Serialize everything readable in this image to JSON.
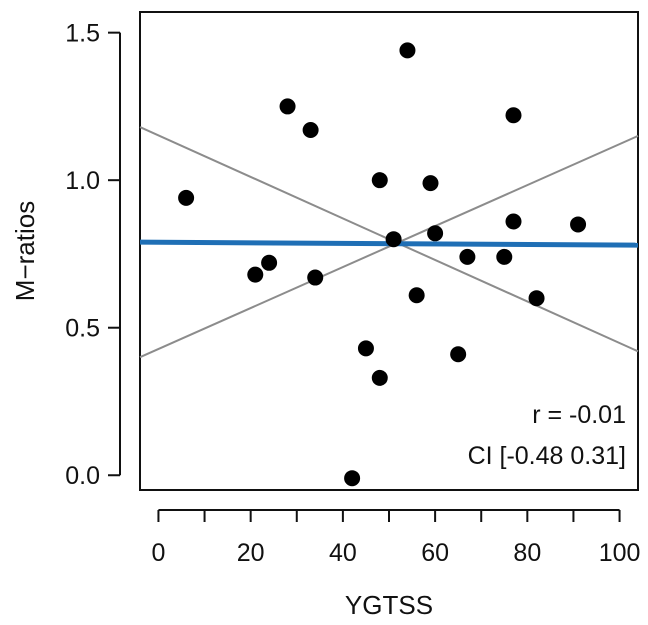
{
  "chart_data": {
    "type": "scatter",
    "title": "",
    "xlabel": "YGTSS",
    "ylabel": "M−ratios",
    "xlim": [
      -4,
      104
    ],
    "ylim": [
      -0.05,
      1.57
    ],
    "x_ticks": [
      0,
      20,
      40,
      60,
      80,
      100
    ],
    "x_minor_ticks": [
      10,
      30,
      50,
      70,
      90
    ],
    "y_ticks": [
      0.0,
      0.5,
      1.0,
      1.5
    ],
    "x_tick_labels": [
      "0",
      "20",
      "40",
      "60",
      "80",
      "100"
    ],
    "y_tick_labels": [
      "0.0",
      "0.5",
      "1.0",
      "1.5"
    ],
    "grid": false,
    "points": [
      {
        "x": 6,
        "y": 0.94
      },
      {
        "x": 21,
        "y": 0.68
      },
      {
        "x": 24,
        "y": 0.72
      },
      {
        "x": 28,
        "y": 1.25
      },
      {
        "x": 33,
        "y": 1.17
      },
      {
        "x": 34,
        "y": 0.67
      },
      {
        "x": 42,
        "y": -0.01
      },
      {
        "x": 45,
        "y": 0.43
      },
      {
        "x": 48,
        "y": 0.33
      },
      {
        "x": 48,
        "y": 1.0
      },
      {
        "x": 51,
        "y": 0.8
      },
      {
        "x": 54,
        "y": 1.44
      },
      {
        "x": 56,
        "y": 0.61
      },
      {
        "x": 59,
        "y": 0.99
      },
      {
        "x": 60,
        "y": 0.82
      },
      {
        "x": 65,
        "y": 0.41
      },
      {
        "x": 67,
        "y": 0.74
      },
      {
        "x": 75,
        "y": 0.74
      },
      {
        "x": 77,
        "y": 1.22
      },
      {
        "x": 77,
        "y": 0.86
      },
      {
        "x": 82,
        "y": 0.6
      },
      {
        "x": 91,
        "y": 0.85
      }
    ],
    "regression_line": {
      "x": [
        -4,
        104
      ],
      "y": [
        0.79,
        0.78
      ]
    },
    "ci_lines": [
      {
        "x": [
          -4,
          104
        ],
        "y": [
          1.18,
          0.42
        ]
      },
      {
        "x": [
          -4,
          104
        ],
        "y": [
          0.4,
          1.15
        ]
      }
    ],
    "colors": {
      "points": "#000000",
      "regression": "#1f6fb5",
      "ci": "#8c8c8c"
    },
    "annotations": [
      "r = -0.01",
      "CI [-0.48 0.31]"
    ]
  }
}
